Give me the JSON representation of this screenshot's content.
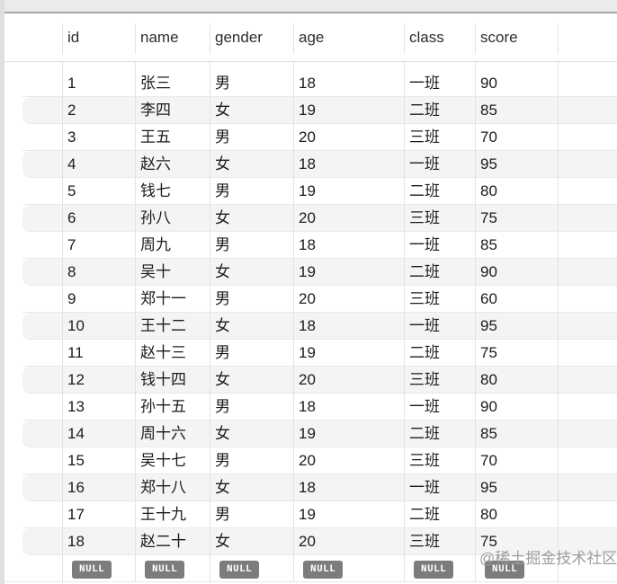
{
  "table": {
    "columns": [
      "id",
      "name",
      "gender",
      "age",
      "class",
      "score"
    ],
    "rows": [
      [
        "1",
        "张三",
        "男",
        "18",
        "一班",
        "90"
      ],
      [
        "2",
        "李四",
        "女",
        "19",
        "二班",
        "85"
      ],
      [
        "3",
        "王五",
        "男",
        "20",
        "三班",
        "70"
      ],
      [
        "4",
        "赵六",
        "女",
        "18",
        "一班",
        "95"
      ],
      [
        "5",
        "钱七",
        "男",
        "19",
        "二班",
        "80"
      ],
      [
        "6",
        "孙八",
        "女",
        "20",
        "三班",
        "75"
      ],
      [
        "7",
        "周九",
        "男",
        "18",
        "一班",
        "85"
      ],
      [
        "8",
        "吴十",
        "女",
        "19",
        "二班",
        "90"
      ],
      [
        "9",
        "郑十一",
        "男",
        "20",
        "三班",
        "60"
      ],
      [
        "10",
        "王十二",
        "女",
        "18",
        "一班",
        "95"
      ],
      [
        "11",
        "赵十三",
        "男",
        "19",
        "二班",
        "75"
      ],
      [
        "12",
        "钱十四",
        "女",
        "20",
        "三班",
        "80"
      ],
      [
        "13",
        "孙十五",
        "男",
        "18",
        "一班",
        "90"
      ],
      [
        "14",
        "周十六",
        "女",
        "19",
        "二班",
        "85"
      ],
      [
        "15",
        "吴十七",
        "男",
        "20",
        "三班",
        "70"
      ],
      [
        "16",
        "郑十八",
        "女",
        "18",
        "一班",
        "95"
      ],
      [
        "17",
        "王十九",
        "男",
        "19",
        "二班",
        "80"
      ],
      [
        "18",
        "赵二十",
        "女",
        "20",
        "三班",
        "75"
      ]
    ],
    "null_row": [
      "NULL",
      "NULL",
      "NULL",
      "NULL",
      "NULL",
      "NULL"
    ]
  },
  "watermark": {
    "text": "@稀土掘金技术社区"
  },
  "colors": {
    "stripe": "#f4f4f4",
    "row_bg": "#ffffff",
    "row_border": "#e9e9e9",
    "col_border": "#e3e3e3",
    "header_border": "#e0e0e0",
    "topbar_bg": "#ebebeb",
    "topbar_line": "#a7a7a7",
    "left_strip": "#e2dedd",
    "badge_bg": "#7c7c7c",
    "badge_text": "#ffffff",
    "text": "#1b1b1b",
    "header_text": "#2d2d2d",
    "watermark": "#9e9e9e"
  }
}
